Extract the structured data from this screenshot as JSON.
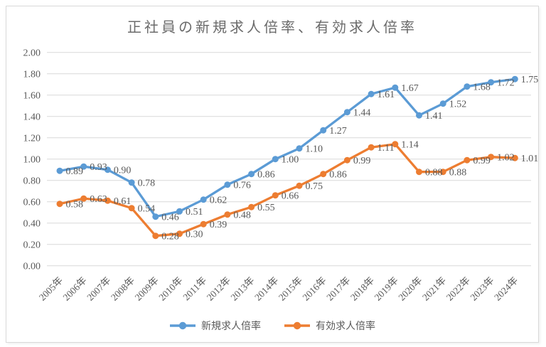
{
  "chart_data": {
    "type": "line",
    "title": "正社員の新規求人倍率、有効求人倍率",
    "xlabel": "",
    "ylabel": "",
    "categories": [
      "2005年",
      "2006年",
      "2007年",
      "2008年",
      "2009年",
      "2010年",
      "2011年",
      "2012年",
      "2013年",
      "2014年",
      "2015年",
      "2016年",
      "2017年",
      "2018年",
      "2019年",
      "2020年",
      "2021年",
      "2022年",
      "2023年",
      "2024年"
    ],
    "series": [
      {
        "name": "新規求人倍率",
        "color": "#5B9BD5",
        "values": [
          0.89,
          0.93,
          0.9,
          0.78,
          0.46,
          0.51,
          0.62,
          0.76,
          0.86,
          1.0,
          1.1,
          1.27,
          1.44,
          1.61,
          1.67,
          1.41,
          1.52,
          1.68,
          1.72,
          1.75
        ]
      },
      {
        "name": "有効求人倍率",
        "color": "#ED7D31",
        "values": [
          0.58,
          0.63,
          0.61,
          0.54,
          0.28,
          0.3,
          0.39,
          0.48,
          0.55,
          0.66,
          0.75,
          0.86,
          0.99,
          1.11,
          1.14,
          0.88,
          0.88,
          0.99,
          1.02,
          1.01
        ]
      }
    ],
    "ylim": [
      0.0,
      2.0
    ],
    "ytick_step": 0.2,
    "ytick_labels": [
      "0.00",
      "0.20",
      "0.40",
      "0.60",
      "0.80",
      "1.00",
      "1.20",
      "1.40",
      "1.60",
      "1.80",
      "2.00"
    ],
    "grid": "horizontal",
    "legend_position": "bottom",
    "data_labels": "right-of-point, 2 decimals",
    "marker": "circle"
  },
  "colors": {
    "grid_line": "#D9D9D9",
    "frame_border": "#D9D9D9",
    "axis_text": "#595959",
    "title_text": "#6B6B6B",
    "series_blue": "#5B9BD5",
    "series_orange": "#ED7D31"
  }
}
